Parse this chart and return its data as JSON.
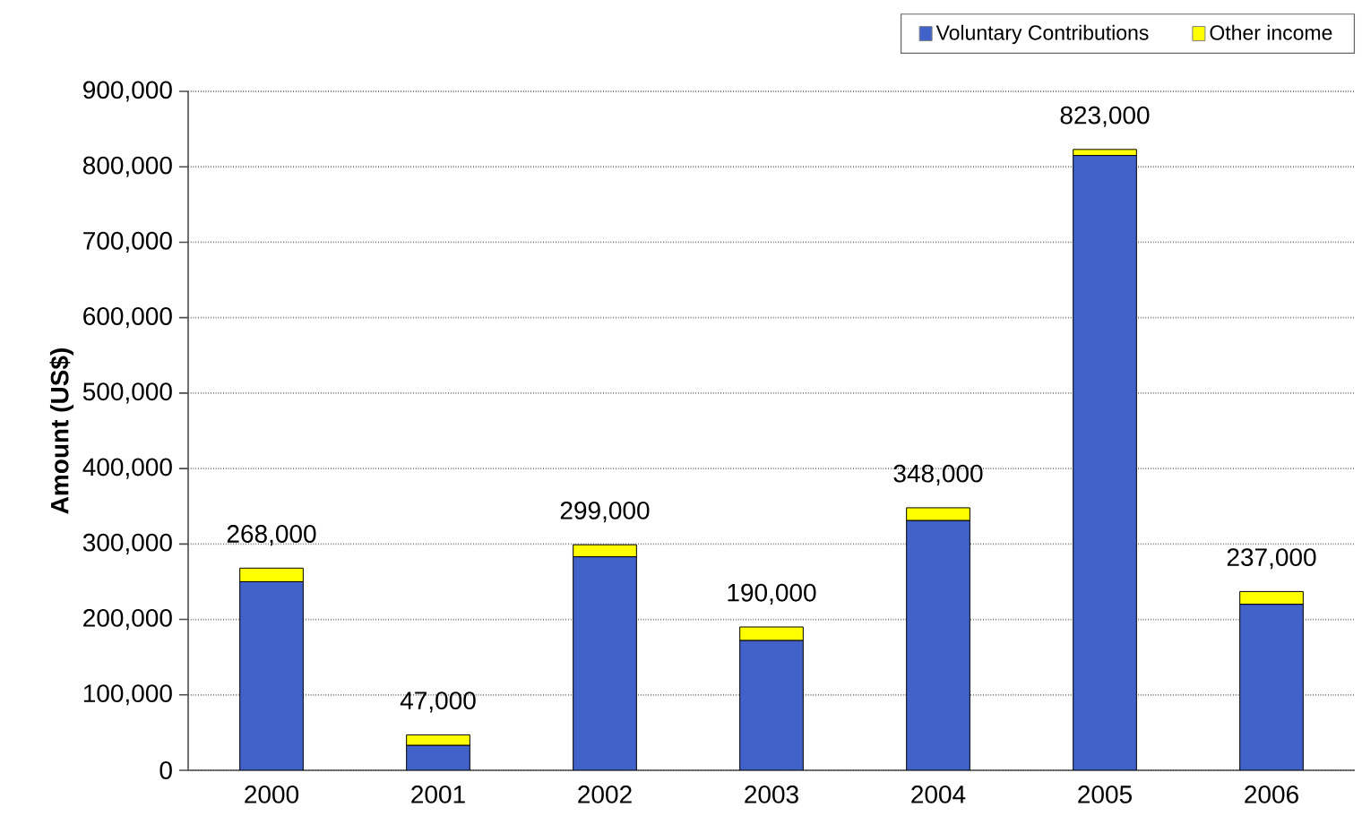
{
  "chart_data": {
    "type": "bar",
    "stacked": true,
    "ylabel": "Amount (US$)",
    "categories": [
      "2000",
      "2001",
      "2002",
      "2003",
      "2004",
      "2005",
      "2006"
    ],
    "series": [
      {
        "name": "Voluntary Contributions",
        "color": "#4163c9",
        "values": [
          250000,
          33000,
          283000,
          172000,
          331000,
          815000,
          220000
        ]
      },
      {
        "name": "Other income",
        "color": "#ffff00",
        "values": [
          18000,
          14000,
          16000,
          18000,
          17000,
          8000,
          17000
        ]
      }
    ],
    "totals": [
      "268,000",
      "47,000",
      "299,000",
      "190,000",
      "348,000",
      "823,000",
      "237,000"
    ],
    "ylim": [
      0,
      900000
    ],
    "yticks": [
      0,
      {
        "value": 100000,
        "label": "100,000"
      },
      {
        "value": 200000,
        "label": "200,000"
      },
      {
        "value": 300000,
        "label": "300,000"
      },
      {
        "value": 400000,
        "label": "400,000"
      },
      {
        "value": 500000,
        "label": "500,000"
      },
      {
        "value": 600000,
        "label": "600,000"
      },
      {
        "value": 700000,
        "label": "700,000"
      },
      {
        "value": 800000,
        "label": "800,000"
      },
      {
        "value": 900000,
        "label": "900,000"
      }
    ],
    "grid": "y",
    "legend": "top right"
  }
}
